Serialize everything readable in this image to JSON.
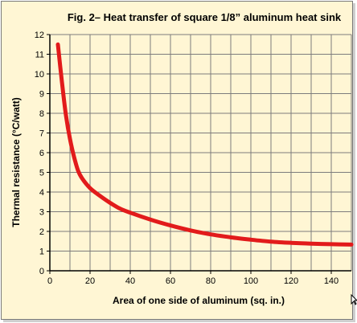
{
  "chart_data": {
    "type": "line",
    "title": "Fig. 2– Heat transfer of square 1/8” aluminum heat sink",
    "xlabel": "Area of one side of aluminum (sq. in.)",
    "ylabel": "Thermal resistance (°C/watt)",
    "xlim": [
      0,
      150
    ],
    "ylim": [
      0,
      12
    ],
    "x_ticks": [
      0,
      20,
      40,
      60,
      80,
      100,
      120,
      140
    ],
    "y_ticks": [
      0,
      1,
      2,
      3,
      4,
      5,
      6,
      7,
      8,
      9,
      10,
      11,
      12
    ],
    "grid": true,
    "series": [
      {
        "color": "#e21b1b",
        "x": [
          4,
          6,
          8,
          10,
          12,
          14,
          16,
          20,
          25,
          30,
          35,
          40,
          50,
          60,
          70,
          80,
          90,
          100,
          110,
          120,
          130,
          140,
          150
        ],
        "y": [
          11.5,
          9.6,
          7.9,
          6.7,
          5.8,
          5.1,
          4.7,
          4.2,
          3.8,
          3.45,
          3.15,
          2.95,
          2.6,
          2.3,
          2.05,
          1.85,
          1.7,
          1.58,
          1.48,
          1.42,
          1.38,
          1.35,
          1.33
        ]
      }
    ]
  },
  "colors": {
    "background": "#fff6d4",
    "grid": "#7c7c7c",
    "axis": "#000000",
    "line": "#e21b1b"
  }
}
